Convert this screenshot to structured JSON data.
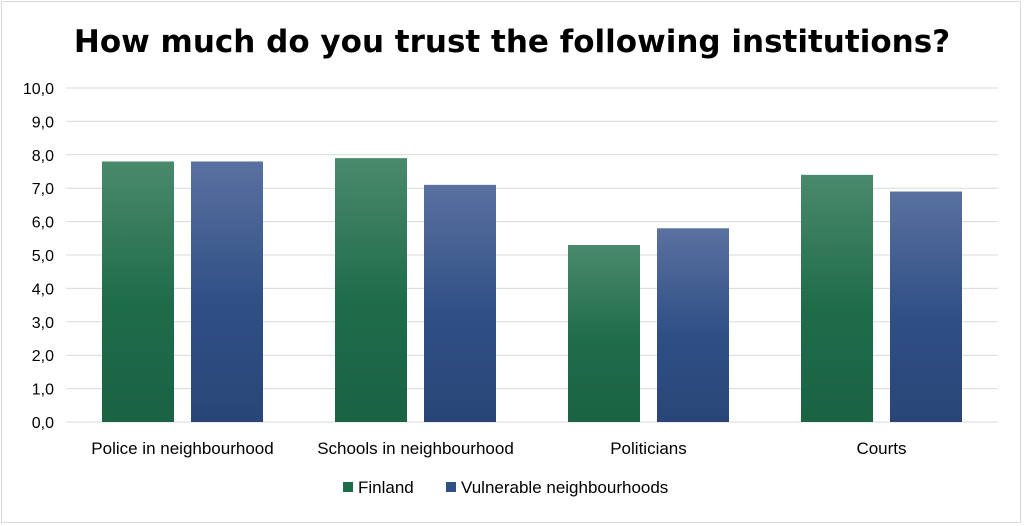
{
  "chart_data": {
    "type": "bar",
    "title": "How much do you trust the following institutions?",
    "categories": [
      "Police in neighbourhood",
      "Schools in neighbourhood",
      "Politicians",
      "Courts"
    ],
    "series": [
      {
        "name": "Finland",
        "values": [
          7.8,
          7.9,
          5.3,
          7.4
        ],
        "color": "#1e6b4a"
      },
      {
        "name": "Vulnerable neighbourhoods",
        "values": [
          7.8,
          7.1,
          5.8,
          6.9
        ],
        "color": "#2f4f85"
      }
    ],
    "y_ticks": [
      "0,0",
      "1,0",
      "2,0",
      "3,0",
      "4,0",
      "5,0",
      "6,0",
      "7,0",
      "8,0",
      "9,0",
      "10,0"
    ],
    "ylim": [
      0,
      10
    ],
    "grid": true,
    "legend_position": "bottom"
  }
}
